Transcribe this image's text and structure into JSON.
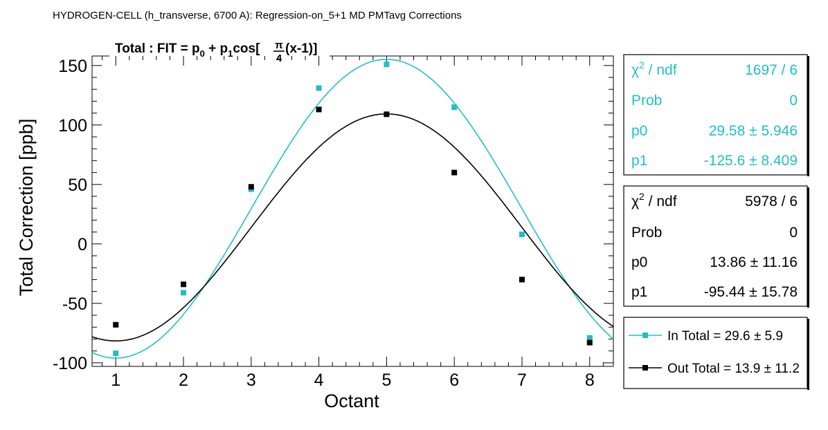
{
  "canvas_title": "HYDROGEN-CELL (h_transverse, 6700 A): Regression-on_5+1 MD PMTavg Corrections",
  "fit_label": {
    "prefix": "Total : FIT = p",
    "sub0": "0",
    "mid": " + p",
    "sub1": "1",
    "cos": "cos[",
    "frac_num": "π",
    "frac_den": "4",
    "suffix": "(x-1)]"
  },
  "colors": {
    "in": "#1fbfc8",
    "out": "#000000"
  },
  "stats_boxes": [
    {
      "color": "#1fbfc8",
      "chi_label": "χ",
      "chi_sup": "2",
      "chi_rest": " / ndf",
      "chi_value": "1697 / 6",
      "rows": [
        {
          "label": "Prob",
          "value": "0"
        },
        {
          "label": "p0",
          "value": "29.58 ± 5.946"
        },
        {
          "label": "p1",
          "value": "-125.6 ± 8.409"
        }
      ]
    },
    {
      "color": "#000000",
      "chi_label": "χ",
      "chi_sup": "2",
      "chi_rest": " / ndf",
      "chi_value": "5978 / 6",
      "rows": [
        {
          "label": "Prob",
          "value": "0"
        },
        {
          "label": "p0",
          "value": "13.86 ± 11.16"
        },
        {
          "label": "p1",
          "value": "-95.44 ± 15.78"
        }
      ]
    }
  ],
  "legend": [
    {
      "label": "In Total = 29.6 ± 5.9",
      "color": "#1fbfc8"
    },
    {
      "label": "Out Total = 13.9 ± 11.2",
      "color": "#000000"
    }
  ],
  "chart_data": {
    "type": "scatter",
    "title": "HYDROGEN-CELL (h_transverse, 6700 A): Regression-on_5+1 MD PMTavg Corrections",
    "xlabel": "Octant",
    "ylabel": "Total Correction [ppb]",
    "xlim": [
      0.65,
      8.35
    ],
    "ylim": [
      -103,
      158
    ],
    "x_ticks": [
      1,
      2,
      3,
      4,
      5,
      6,
      7,
      8
    ],
    "y_ticks": [
      -100,
      -50,
      0,
      50,
      100,
      150
    ],
    "grid": false,
    "legend_position": "bottom-right",
    "series": [
      {
        "name": "In Total",
        "color": "#1fbfc8",
        "x": [
          1,
          2,
          3,
          4,
          5,
          6,
          7,
          8
        ],
        "y": [
          -92,
          -41,
          46,
          131,
          151,
          115,
          8,
          -79
        ],
        "fit": {
          "p0": 29.58,
          "p1": -125.6
        }
      },
      {
        "name": "Out Total",
        "color": "#000000",
        "x": [
          1,
          2,
          3,
          4,
          5,
          6,
          7,
          8
        ],
        "y": [
          -68,
          -34,
          48,
          113,
          109,
          60,
          -30,
          -83
        ],
        "fit": {
          "p0": 13.86,
          "p1": -95.44
        }
      }
    ]
  }
}
